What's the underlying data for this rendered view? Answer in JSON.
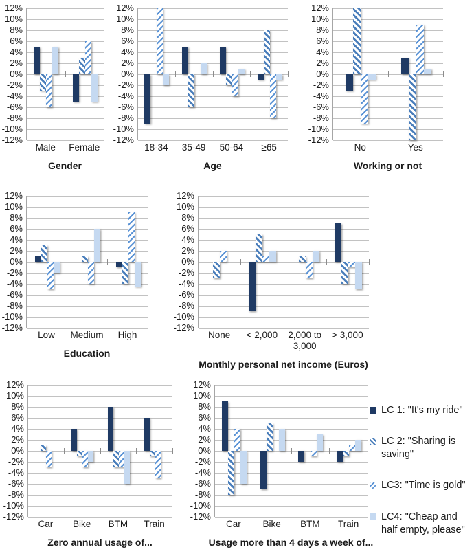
{
  "colors": {
    "lc1_fill": "#1f3a64",
    "lc2_stripe": "#4a7ebb",
    "lc3_stripe": "#5b93d5",
    "lc4_fill": "#c5d9f1",
    "gridline": "#c2c2c2",
    "axis": "#a6a6a6"
  },
  "y_axis": {
    "ticks": [
      "12%",
      "10%",
      "8%",
      "6%",
      "4%",
      "2%",
      "0%",
      "-2%",
      "-4%",
      "-6%",
      "-8%",
      "-10%",
      "-12%"
    ],
    "min": -12,
    "max": 12,
    "step": 2
  },
  "legend": {
    "items": [
      {
        "name": "lc1-swatch",
        "label": "LC 1: \"It's my ride\""
      },
      {
        "name": "lc2-swatch",
        "label": "LC 2: \"Sharing is saving\""
      },
      {
        "name": "lc3-swatch",
        "label": "LC3: \"Time is gold\""
      },
      {
        "name": "lc4-swatch",
        "label": "LC4: \"Cheap and half empty, please\""
      }
    ]
  },
  "chart_data": [
    {
      "type": "bar",
      "title": "Gender",
      "categories": [
        "Male",
        "Female"
      ],
      "ylim": [
        -12,
        12
      ],
      "grid": true,
      "series": [
        {
          "name": "LC 1",
          "values": [
            5,
            -5
          ]
        },
        {
          "name": "LC 2",
          "values": [
            -3,
            3
          ]
        },
        {
          "name": "LC3",
          "values": [
            -6,
            6
          ]
        },
        {
          "name": "LC4",
          "values": [
            5,
            -5
          ]
        }
      ]
    },
    {
      "type": "bar",
      "title": "Age",
      "categories": [
        "18-34",
        "35-49",
        "50-64",
        "≥65"
      ],
      "ylim": [
        -12,
        12
      ],
      "grid": true,
      "series": [
        {
          "name": "LC 1",
          "values": [
            -9,
            5,
            5,
            -1
          ]
        },
        {
          "name": "LC 2",
          "values": [
            0,
            -6,
            -2,
            8
          ]
        },
        {
          "name": "LC3",
          "values": [
            12,
            0,
            -4,
            -8
          ]
        },
        {
          "name": "LC4",
          "values": [
            -2,
            2,
            1,
            -1
          ]
        }
      ]
    },
    {
      "type": "bar",
      "title": "Working or not",
      "categories": [
        "No",
        "Yes"
      ],
      "ylim": [
        -12,
        12
      ],
      "grid": true,
      "series": [
        {
          "name": "LC 1",
          "values": [
            -3,
            3
          ]
        },
        {
          "name": "LC 2",
          "values": [
            12,
            -12
          ]
        },
        {
          "name": "LC3",
          "values": [
            -9,
            9
          ]
        },
        {
          "name": "LC4",
          "values": [
            -1,
            1
          ]
        }
      ]
    },
    {
      "type": "bar",
      "title": "Education",
      "categories": [
        "Low",
        "Medium",
        "High"
      ],
      "ylim": [
        -12,
        12
      ],
      "grid": true,
      "series": [
        {
          "name": "LC 1",
          "values": [
            1,
            0,
            -1
          ]
        },
        {
          "name": "LC 2",
          "values": [
            3,
            1,
            -4
          ]
        },
        {
          "name": "LC3",
          "values": [
            -5,
            -4,
            9
          ]
        },
        {
          "name": "LC4",
          "values": [
            -2,
            6,
            -4.5
          ]
        }
      ]
    },
    {
      "type": "bar",
      "title": "Monthly personal net income (Euros)",
      "categories": [
        "None",
        "< 2,000",
        "2,000 to 3,000",
        "> 3,000"
      ],
      "ylim": [
        -12,
        12
      ],
      "grid": true,
      "series": [
        {
          "name": "LC 1",
          "values": [
            0,
            -9,
            0,
            7
          ]
        },
        {
          "name": "LC 2",
          "values": [
            -3,
            5,
            1,
            -4
          ]
        },
        {
          "name": "LC3",
          "values": [
            2,
            1,
            -3,
            -1
          ]
        },
        {
          "name": "LC4",
          "values": [
            0,
            2,
            2,
            -5
          ]
        }
      ]
    },
    {
      "type": "bar",
      "title": "Zero annual usage of...",
      "categories": [
        "Car",
        "Bike",
        "BTM",
        "Train"
      ],
      "ylim": [
        -12,
        12
      ],
      "grid": true,
      "series": [
        {
          "name": "LC 1",
          "values": [
            0,
            4,
            8,
            6
          ]
        },
        {
          "name": "LC 2",
          "values": [
            1,
            -1,
            -3,
            -1
          ]
        },
        {
          "name": "LC3",
          "values": [
            -3,
            -3,
            -3,
            -5
          ]
        },
        {
          "name": "LC4",
          "values": [
            0,
            -2,
            -6,
            0
          ]
        }
      ]
    },
    {
      "type": "bar",
      "title": "Usage more than 4 days a week of...",
      "categories": [
        "Car",
        "Bike",
        "BTM",
        "Train"
      ],
      "ylim": [
        -12,
        12
      ],
      "grid": true,
      "series": [
        {
          "name": "LC 1",
          "values": [
            9,
            -7,
            -2,
            -2
          ]
        },
        {
          "name": "LC 2",
          "values": [
            -8,
            5,
            0,
            -1
          ]
        },
        {
          "name": "LC3",
          "values": [
            4,
            0,
            -1,
            1
          ]
        },
        {
          "name": "LC4",
          "values": [
            -6,
            4,
            3,
            2
          ]
        }
      ]
    }
  ]
}
